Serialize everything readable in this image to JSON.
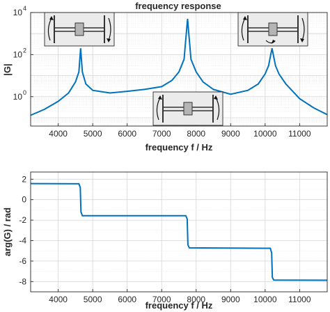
{
  "chart_data": [
    {
      "type": "line",
      "title": "frequency response",
      "xlabel": "frequency f / Hz",
      "ylabel": "|G|",
      "xlim": [
        3200,
        11800
      ],
      "ylim": [
        0.04,
        10000
      ],
      "yscale": "log",
      "grid": true,
      "xticks": [
        4000,
        5000,
        6000,
        7000,
        8000,
        9000,
        10000,
        11000
      ],
      "yticks": [
        {
          "base": "10",
          "exp": "0",
          "value": 1
        },
        {
          "base": "10",
          "exp": "2",
          "value": 100
        },
        {
          "base": "10",
          "exp": "4",
          "value": 10000
        }
      ],
      "resonance_peaks": [
        {
          "f": 4650,
          "magnitude": 200
        },
        {
          "f": 7750,
          "magnitude": 5000
        },
        {
          "f": 10200,
          "magnitude": 200
        }
      ],
      "series": [
        {
          "x": [
            3200,
            3600,
            4000,
            4300,
            4500,
            4600,
            4650,
            4700,
            4800,
            5000,
            5500,
            6000,
            6500,
            7000,
            7300,
            7500,
            7650,
            7750,
            7850,
            8000,
            8200,
            8500,
            9000,
            9500,
            9800,
            10000,
            10100,
            10200,
            10300,
            10400,
            10600,
            11000,
            11400,
            11800
          ],
          "y": [
            0.13,
            0.25,
            0.6,
            1.5,
            5,
            15,
            200,
            15,
            4,
            2,
            1.5,
            1.8,
            2.2,
            3,
            6,
            15,
            60,
            5000,
            60,
            15,
            5,
            2.2,
            1.3,
            2,
            4,
            12,
            30,
            200,
            30,
            12,
            4,
            0.8,
            0.3,
            0.14
          ]
        }
      ],
      "mode_insets": [
        {
          "name": "mode-1",
          "position": "top-left",
          "icons": [
            "mass-spring-diagram-icon",
            "curved-arrow-icon"
          ]
        },
        {
          "name": "mode-2",
          "position": "bottom-center",
          "icons": [
            "mass-spring-diagram-icon",
            "curved-arrow-icon"
          ]
        },
        {
          "name": "mode-3",
          "position": "top-right",
          "icons": [
            "mass-spring-diagram-icon",
            "curved-arrow-icon"
          ]
        }
      ]
    },
    {
      "type": "line",
      "title": "",
      "xlabel": "frequency f / Hz",
      "ylabel": "arg(G) / rad",
      "xlim": [
        3200,
        11800
      ],
      "ylim": [
        -9,
        2.7
      ],
      "grid": true,
      "xticks": [
        4000,
        5000,
        6000,
        7000,
        8000,
        9000,
        10000,
        11000
      ],
      "yticks": [
        2,
        0,
        -2,
        -4,
        -6,
        -8
      ],
      "series": [
        {
          "x": [
            3200,
            4600,
            4640,
            4660,
            4700,
            7700,
            7740,
            7760,
            7800,
            10150,
            10190,
            10210,
            10250,
            11800
          ],
          "y": [
            1.57,
            1.55,
            1.2,
            -1.2,
            -1.57,
            -1.57,
            -1.9,
            -4.4,
            -4.71,
            -4.75,
            -5.2,
            -7.6,
            -7.85,
            -7.87
          ]
        }
      ]
    }
  ]
}
